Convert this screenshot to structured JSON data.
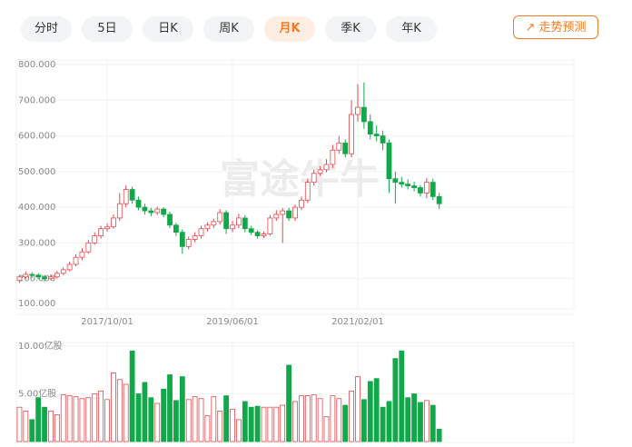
{
  "tabs": [
    "分时",
    "5日",
    "日K",
    "周K",
    "月K",
    "季K",
    "年K"
  ],
  "active_tab": 4,
  "button": "走势预测",
  "watermark": "富途牛牛",
  "chart_data": [
    {
      "type": "candlestick",
      "ohlc": [
        [
          195,
          210,
          188,
          205
        ],
        [
          205,
          220,
          200,
          212
        ],
        [
          212,
          218,
          202,
          210
        ],
        [
          210,
          215,
          198,
          205
        ],
        [
          205,
          210,
          192,
          200
        ],
        [
          200,
          212,
          196,
          205
        ],
        [
          205,
          222,
          200,
          215
        ],
        [
          215,
          232,
          210,
          225
        ],
        [
          225,
          248,
          220,
          240
        ],
        [
          240,
          268,
          235,
          260
        ],
        [
          260,
          285,
          252,
          275
        ],
        [
          275,
          308,
          270,
          300
        ],
        [
          300,
          330,
          295,
          320
        ],
        [
          320,
          348,
          312,
          340
        ],
        [
          340,
          355,
          332,
          345
        ],
        [
          345,
          380,
          340,
          370
        ],
        [
          370,
          440,
          362,
          410
        ],
        [
          410,
          462,
          400,
          450
        ],
        [
          450,
          458,
          410,
          420
        ],
        [
          420,
          430,
          392,
          400
        ],
        [
          400,
          410,
          380,
          390
        ],
        [
          390,
          398,
          375,
          385
        ],
        [
          385,
          402,
          378,
          395
        ],
        [
          395,
          400,
          372,
          380
        ],
        [
          380,
          388,
          342,
          350
        ],
        [
          350,
          356,
          320,
          330
        ],
        [
          330,
          338,
          270,
          290
        ],
        [
          290,
          318,
          282,
          310
        ],
        [
          310,
          330,
          302,
          320
        ],
        [
          320,
          348,
          312,
          340
        ],
        [
          340,
          358,
          332,
          350
        ],
        [
          350,
          368,
          342,
          360
        ],
        [
          360,
          395,
          352,
          385
        ],
        [
          385,
          392,
          325,
          340
        ],
        [
          340,
          362,
          330,
          350
        ],
        [
          350,
          382,
          342,
          370
        ],
        [
          370,
          378,
          330,
          340
        ],
        [
          340,
          348,
          322,
          330
        ],
        [
          330,
          336,
          312,
          320
        ],
        [
          320,
          332,
          314,
          325
        ],
        [
          325,
          378,
          320,
          370
        ],
        [
          370,
          392,
          362,
          380
        ],
        [
          380,
          398,
          300,
          390
        ],
        [
          390,
          398,
          362,
          370
        ],
        [
          370,
          408,
          362,
          400
        ],
        [
          400,
          430,
          392,
          420
        ],
        [
          420,
          480,
          412,
          470
        ],
        [
          470,
          505,
          460,
          495
        ],
        [
          495,
          515,
          488,
          505
        ],
        [
          505,
          535,
          498,
          520
        ],
        [
          520,
          575,
          510,
          560
        ],
        [
          560,
          600,
          550,
          580
        ],
        [
          580,
          590,
          540,
          550
        ],
        [
          550,
          700,
          540,
          660
        ],
        [
          660,
          745,
          640,
          680
        ],
        [
          680,
          750,
          620,
          640
        ],
        [
          640,
          660,
          590,
          605
        ],
        [
          605,
          630,
          585,
          600
        ],
        [
          600,
          615,
          560,
          580
        ],
        [
          580,
          590,
          440,
          480
        ],
        [
          480,
          500,
          410,
          470
        ],
        [
          470,
          485,
          455,
          465
        ],
        [
          465,
          478,
          450,
          460
        ],
        [
          460,
          472,
          445,
          455
        ],
        [
          455,
          462,
          430,
          440
        ],
        [
          440,
          482,
          425,
          470
        ],
        [
          470,
          480,
          420,
          430
        ],
        [
          430,
          440,
          395,
          410
        ]
      ],
      "up_color": "#e8474b",
      "down_color": "#11a84a",
      "ylim": [
        100,
        800
      ],
      "yticks": [
        {
          "value": 100,
          "label": "100.000"
        },
        {
          "value": 200,
          "label": "200.000"
        },
        {
          "value": 300,
          "label": "300.000"
        },
        {
          "value": 400,
          "label": "400.000"
        },
        {
          "value": 500,
          "label": "500.000"
        },
        {
          "value": 600,
          "label": "600.000"
        },
        {
          "value": 700,
          "label": "700.000"
        },
        {
          "value": 800,
          "label": "800.000"
        }
      ],
      "xlim": [
        -0.5,
        88.5
      ],
      "xticks": [
        {
          "value": 14,
          "label": "2017/10/01"
        },
        {
          "value": 34,
          "label": "2019/06/01"
        },
        {
          "value": 54,
          "label": "2021/02/01"
        }
      ],
      "grid": true
    },
    {
      "type": "bar",
      "values": [
        3.6,
        3.2,
        2.3,
        4.6,
        3.6,
        3.2,
        2.8,
        4.9,
        4.8,
        4.7,
        4.5,
        4.6,
        5.0,
        5.3,
        4.4,
        7.2,
        6.5,
        6.0,
        9.5,
        5.0,
        6.2,
        4.6,
        4.0,
        5.5,
        7.0,
        4.3,
        6.8,
        4.4,
        4.7,
        4.5,
        2.7,
        4.7,
        3.2,
        4.8,
        3.4,
        2.3,
        4.2,
        3.6,
        3.7,
        3.6,
        3.6,
        3.6,
        3.8,
        8.0,
        4.2,
        4.8,
        4.8,
        4.9,
        4.5,
        2.6,
        4.8,
        4.5,
        3.8,
        5.3,
        6.8,
        4.4,
        6.3,
        6.6,
        3.6,
        4.2,
        8.7,
        9.5,
        4.6,
        5.0,
        4.1,
        4.3,
        3.8,
        1.3
      ],
      "ylim": [
        0,
        10
      ],
      "yticks": [
        {
          "value": 5,
          "label": "5.00亿股"
        },
        {
          "value": 10,
          "label": "10.00亿股"
        }
      ],
      "grid": true
    }
  ]
}
